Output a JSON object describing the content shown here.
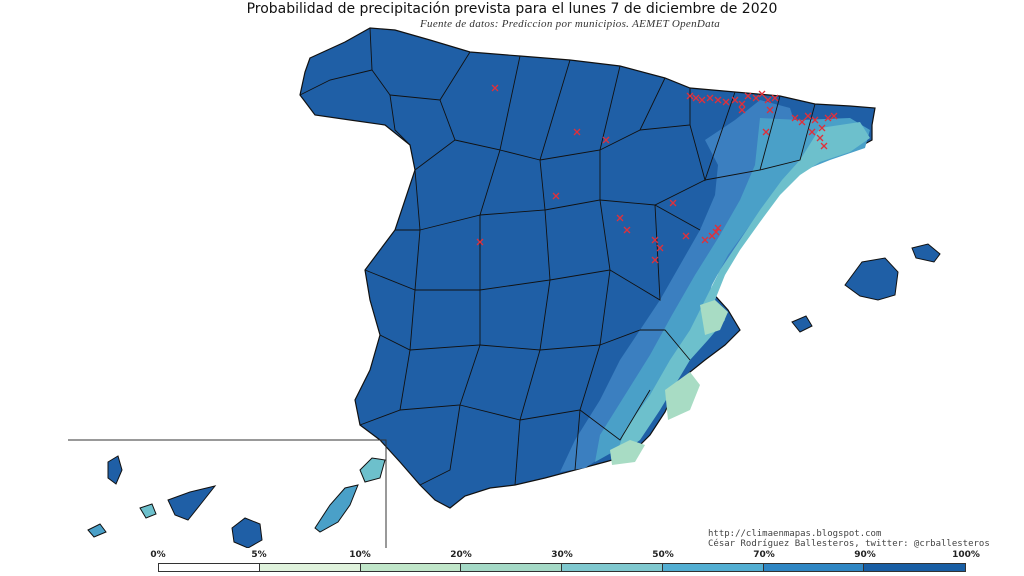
{
  "title": "Probabilidad de precipitación prevista para el lunes 7 de diciembre de 2020",
  "subtitle": "Fuente de datos: Prediccion por municipios. AEMET OpenData",
  "credits": {
    "url": "http://climaenmapas.blogspot.com",
    "author": "César Rodríguez Ballesteros, twitter: @crballesteros"
  },
  "map": {
    "region": "Spain",
    "markers_meaning": "red crosses (x) over municipalities",
    "colors": {
      "high": "#1f5fa6",
      "mid_high": "#3b7fc0",
      "mid": "#4aa0c8",
      "mid_low": "#6dc0cc",
      "low": "#a8dcc4",
      "marker": "#e0303a",
      "border": "#111111"
    }
  },
  "legend": {
    "ticks": [
      "0%",
      "5%",
      "10%",
      "20%",
      "30%",
      "50%",
      "70%",
      "90%",
      "100%"
    ],
    "colors": [
      "#ffffff",
      "#dff2dc",
      "#c0e6c9",
      "#a4d9c6",
      "#7fc8cf",
      "#52aed2",
      "#2f86c3",
      "#185ea4"
    ]
  }
}
